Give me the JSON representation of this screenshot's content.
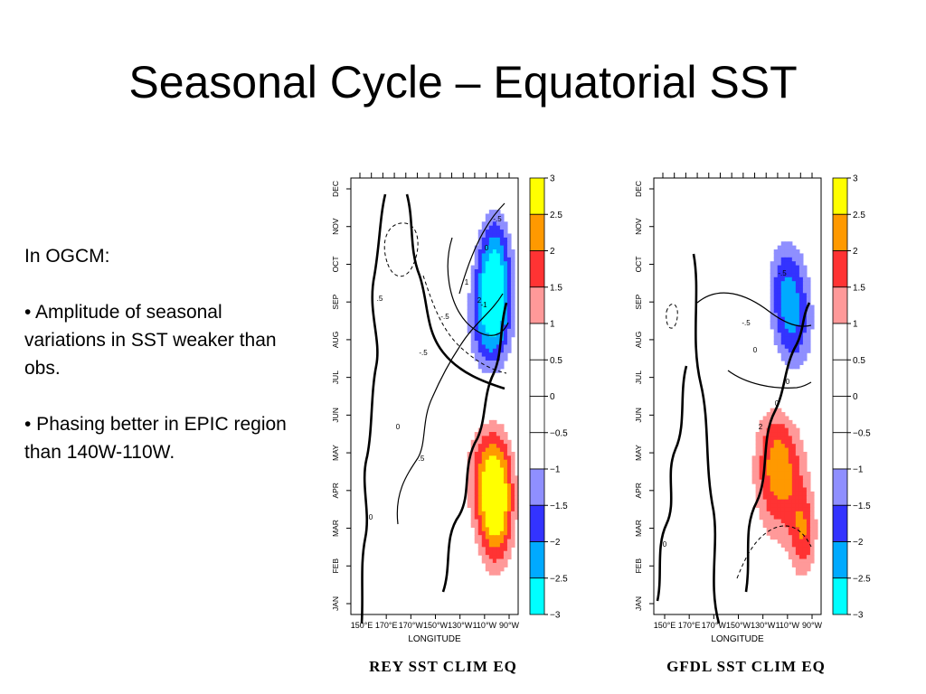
{
  "slide": {
    "title": "Seasonal Cycle – Equatorial SST",
    "notes_heading": "In OGCM:",
    "bullets": [
      "• Amplitude of seasonal variations in SST weaker than obs.",
      "• Phasing better in EPIC region than 140W-110W."
    ]
  },
  "chart_data": [
    {
      "type": "heatmap",
      "caption": "REY SST CLIM EQ",
      "xlabel": "LONGITUDE",
      "x_tick_labels": [
        "150°E",
        "170°E",
        "170°W",
        "150°W",
        "130°W",
        "110°W",
        "90°W"
      ],
      "y_tick_labels": [
        "JAN",
        "FEB",
        "MAR",
        "APR",
        "MAY",
        "JUN",
        "JUL",
        "AUG",
        "SEP",
        "OCT",
        "NOV",
        "DEC"
      ],
      "colorbar_ticks": [
        "3",
        "2.5",
        "2",
        "1.5",
        "1",
        "0.5",
        "0",
        "−0.5",
        "−1",
        "−1.5",
        "−2",
        "−2.5",
        "−3"
      ],
      "contour_labels": [
        "0",
        "0",
        "-.5",
        "-.5",
        "-1",
        "0",
        "-.5",
        ".5",
        "1",
        "2",
        ".5"
      ],
      "min_anomaly": -2.6,
      "max_anomaly": 2.7
    },
    {
      "type": "heatmap",
      "caption": "GFDL SST CLIM EQ",
      "xlabel": "LONGITUDE",
      "x_tick_labels": [
        "150°E",
        "170°E",
        "170°W",
        "150°W",
        "130°W",
        "110°W",
        "90°W"
      ],
      "y_tick_labels": [
        "JAN",
        "FEB",
        "MAR",
        "APR",
        "MAY",
        "JUN",
        "JUL",
        "AUG",
        "SEP",
        "OCT",
        "NOV",
        "DEC"
      ],
      "colorbar_ticks": [
        "3",
        "2.5",
        "2",
        "1.5",
        "1",
        "0.5",
        "0",
        "−0.5",
        "−1",
        "−1.5",
        "−2",
        "−2.5",
        "−3"
      ],
      "contour_labels": [
        "0",
        "-.5",
        "0",
        "-.5",
        "0",
        "2",
        "0"
      ],
      "min_anomaly": -2.3,
      "max_anomaly": 2.4
    }
  ],
  "colors": {
    "level_colors": [
      "#00ffff",
      "#00aaff",
      "#3333ff",
      "#8f8fff",
      "#ffffff",
      "#ffffff",
      "#ffffff",
      "#ffffff",
      "#ff9999",
      "#ff3333",
      "#ff9900",
      "#ffff00"
    ]
  }
}
